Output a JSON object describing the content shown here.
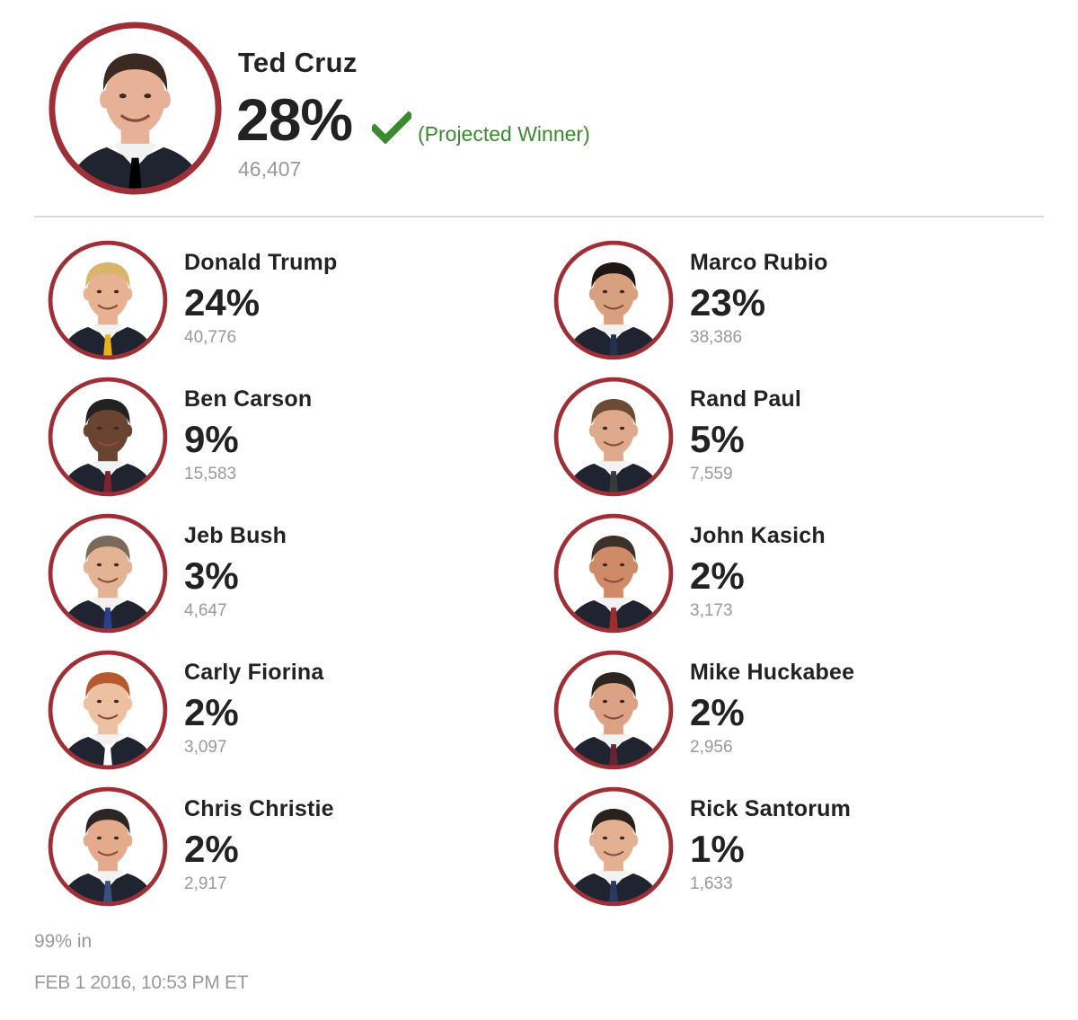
{
  "colors": {
    "ring": "#9e2f36",
    "suit": "#1f2430",
    "shirt": "#f2f2f2",
    "check": "#3a8a2e"
  },
  "winner": {
    "name": "Ted Cruz",
    "percent": "28%",
    "status": "(Projected Winner)",
    "status_icon": "checkmark-icon",
    "votes": "46,407",
    "photo": {
      "skin": "#e6b196",
      "hair": "#3b2a22",
      "bg": "#ffffff"
    }
  },
  "candidates": [
    {
      "name": "Donald Trump",
      "percent": "24%",
      "votes": "40,776",
      "photo": {
        "skin": "#e7b291",
        "hair": "#d9b56a",
        "bg": "#ffffff",
        "tie": "#e8b21c"
      }
    },
    {
      "name": "Marco Rubio",
      "percent": "23%",
      "votes": "38,386",
      "photo": {
        "skin": "#d7a07e",
        "hair": "#1e1714",
        "bg": "#ffffff",
        "tie": "#24324f"
      }
    },
    {
      "name": "Ben Carson",
      "percent": "9%",
      "votes": "15,583",
      "photo": {
        "skin": "#6b4331",
        "hair": "#222222",
        "bg": "#ffffff",
        "tie": "#7a2430"
      }
    },
    {
      "name": "Rand Paul",
      "percent": "5%",
      "votes": "7,559",
      "photo": {
        "skin": "#dfa98b",
        "hair": "#6b4b33",
        "bg": "#ffffff",
        "tie": "#3a3a3a"
      }
    },
    {
      "name": "Jeb Bush",
      "percent": "3%",
      "votes": "4,647",
      "photo": {
        "skin": "#e3b394",
        "hair": "#7b6a5c",
        "bg": "#ffffff",
        "tie": "#2b3f8a"
      }
    },
    {
      "name": "John Kasich",
      "percent": "2%",
      "votes": "3,173",
      "photo": {
        "skin": "#cf8a67",
        "hair": "#3e3129",
        "bg": "#ffffff",
        "tie": "#a02b2b"
      }
    },
    {
      "name": "Carly Fiorina",
      "percent": "2%",
      "votes": "3,097",
      "photo": {
        "skin": "#eec0a2",
        "hair": "#b65a2e",
        "bg": "#ffffff",
        "tie": "#ffffff"
      }
    },
    {
      "name": "Mike Huckabee",
      "percent": "2%",
      "votes": "2,956",
      "photo": {
        "skin": "#dba384",
        "hair": "#2d2520",
        "bg": "#ffffff",
        "tie": "#6a2330"
      }
    },
    {
      "name": "Chris Christie",
      "percent": "2%",
      "votes": "2,917",
      "photo": {
        "skin": "#e4aa8c",
        "hair": "#2e2623",
        "bg": "#ffffff",
        "tie": "#3a4e82"
      }
    },
    {
      "name": "Rick Santorum",
      "percent": "1%",
      "votes": "1,633",
      "photo": {
        "skin": "#e3b092",
        "hair": "#2a211d",
        "bg": "#ffffff",
        "tie": "#2b3a63"
      }
    }
  ],
  "footer": {
    "reporting": "99% in",
    "timestamp": "FEB 1 2016, 10:53 PM ET"
  }
}
